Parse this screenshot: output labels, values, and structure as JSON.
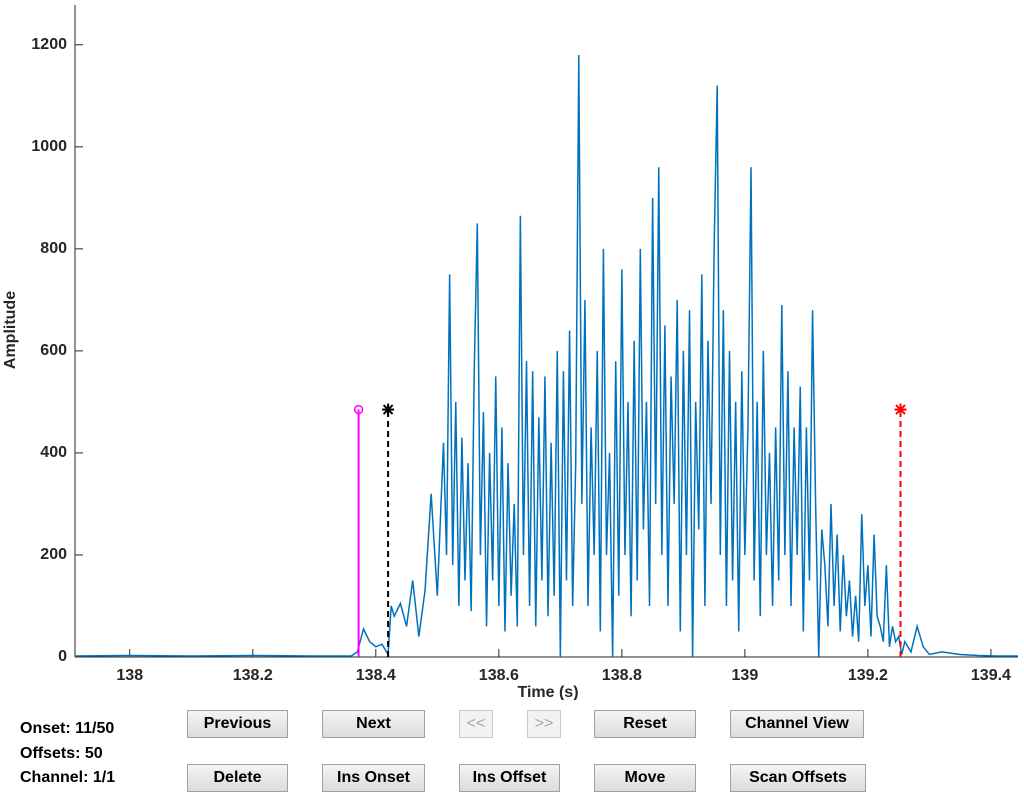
{
  "chart_data": {
    "type": "line",
    "x_label": "Time (s)",
    "y_label": "Amplitude",
    "xlim": [
      137.911,
      139.444
    ],
    "ylim": [
      0,
      1278
    ],
    "xticks": [
      138,
      138.2,
      138.4,
      138.6,
      138.8,
      139,
      139.2,
      139.4
    ],
    "yticks": [
      0,
      200,
      400,
      600,
      800,
      1000,
      1200
    ],
    "grid": false,
    "series": [
      {
        "color": "#0072bd",
        "x": [
          137.911,
          138.0,
          138.1,
          138.2,
          138.3,
          138.36,
          138.37,
          138.38,
          138.39,
          138.4,
          138.41,
          138.42,
          138.425,
          138.43,
          138.44,
          138.45,
          138.46,
          138.47,
          138.48,
          138.49,
          138.5,
          138.51,
          138.515,
          138.52,
          138.525,
          138.53,
          138.535,
          138.54,
          138.545,
          138.55,
          138.555,
          138.56,
          138.565,
          138.57,
          138.575,
          138.58,
          138.585,
          138.59,
          138.595,
          138.6,
          138.605,
          138.61,
          138.615,
          138.62,
          138.625,
          138.63,
          138.635,
          138.64,
          138.645,
          138.65,
          138.655,
          138.66,
          138.665,
          138.67,
          138.675,
          138.68,
          138.685,
          138.69,
          138.695,
          138.7,
          138.705,
          138.71,
          138.715,
          138.72,
          138.725,
          138.73,
          138.735,
          138.74,
          138.745,
          138.75,
          138.755,
          138.76,
          138.765,
          138.77,
          138.775,
          138.78,
          138.785,
          138.79,
          138.795,
          138.8,
          138.805,
          138.81,
          138.815,
          138.82,
          138.825,
          138.83,
          138.835,
          138.84,
          138.845,
          138.85,
          138.855,
          138.86,
          138.865,
          138.87,
          138.875,
          138.88,
          138.885,
          138.89,
          138.895,
          138.9,
          138.905,
          138.91,
          138.915,
          138.92,
          138.925,
          138.93,
          138.935,
          138.94,
          138.945,
          138.95,
          138.955,
          138.96,
          138.965,
          138.97,
          138.975,
          138.98,
          138.985,
          138.99,
          138.995,
          139.0,
          139.005,
          139.01,
          139.015,
          139.02,
          139.025,
          139.03,
          139.035,
          139.04,
          139.045,
          139.05,
          139.055,
          139.06,
          139.065,
          139.07,
          139.075,
          139.08,
          139.085,
          139.09,
          139.095,
          139.1,
          139.105,
          139.11,
          139.115,
          139.12,
          139.125,
          139.13,
          139.135,
          139.14,
          139.145,
          139.15,
          139.155,
          139.16,
          139.165,
          139.17,
          139.175,
          139.18,
          139.185,
          139.19,
          139.195,
          139.2,
          139.205,
          139.21,
          139.215,
          139.22,
          139.225,
          139.23,
          139.235,
          139.24,
          139.245,
          139.25,
          139.255,
          139.26,
          139.27,
          139.28,
          139.29,
          139.3,
          139.32,
          139.35,
          139.38,
          139.41,
          139.444
        ],
        "values": [
          2,
          3,
          2,
          3,
          2,
          2,
          10,
          55,
          30,
          20,
          25,
          5,
          100,
          80,
          105,
          60,
          150,
          40,
          130,
          320,
          120,
          420,
          200,
          750,
          180,
          500,
          100,
          430,
          150,
          380,
          90,
          560,
          850,
          200,
          480,
          60,
          400,
          150,
          550,
          100,
          450,
          50,
          380,
          120,
          300,
          60,
          865,
          200,
          580,
          100,
          560,
          60,
          470,
          150,
          550,
          80,
          420,
          120,
          600,
          0,
          560,
          150,
          640,
          100,
          380,
          1180,
          300,
          700,
          100,
          450,
          200,
          600,
          50,
          800,
          200,
          400,
          0,
          580,
          120,
          760,
          200,
          500,
          80,
          620,
          150,
          800,
          250,
          500,
          100,
          900,
          300,
          960,
          200,
          650,
          100,
          550,
          300,
          700,
          50,
          600,
          200,
          680,
          0,
          500,
          250,
          750,
          100,
          620,
          300,
          800,
          1120,
          200,
          680,
          100,
          600,
          150,
          500,
          50,
          560,
          200,
          450,
          960,
          150,
          500,
          80,
          600,
          200,
          400,
          100,
          450,
          150,
          690,
          200,
          560,
          100,
          450,
          200,
          530,
          50,
          450,
          150,
          680,
          300,
          0,
          250,
          180,
          60,
          300,
          100,
          240,
          50,
          200,
          80,
          150,
          40,
          120,
          30,
          280,
          100,
          180,
          40,
          240,
          80,
          60,
          30,
          180,
          20,
          60,
          30,
          40,
          5,
          30,
          10,
          60,
          20,
          5,
          10,
          5,
          3,
          2,
          2
        ]
      }
    ],
    "markers": [
      {
        "x": 138.372,
        "y": 485,
        "color": "#ff00ff",
        "style": "solid",
        "symbol": "circle"
      },
      {
        "x": 138.42,
        "y": 485,
        "color": "#000000",
        "style": "dashed",
        "symbol": "asterisk"
      },
      {
        "x": 139.253,
        "y": 485,
        "color": "#ff0000",
        "style": "dashed",
        "symbol": "asterisk"
      }
    ]
  },
  "status": {
    "onset": "Onset: 11/50",
    "offsets": "Offsets: 50",
    "channel": "Channel: 1/1"
  },
  "buttons": [
    {
      "label": "Previous",
      "enabled": true
    },
    {
      "label": "Next",
      "enabled": true
    },
    {
      "label": "<<",
      "enabled": false
    },
    {
      "label": ">>",
      "enabled": false
    },
    {
      "label": "Reset",
      "enabled": true
    },
    {
      "label": "Channel View",
      "enabled": true
    },
    {
      "label": "Delete",
      "enabled": true
    },
    {
      "label": "Ins Onset",
      "enabled": true
    },
    {
      "label": "Ins Offset",
      "enabled": true
    },
    {
      "label": "Move",
      "enabled": true
    },
    {
      "label": "Scan Offsets",
      "enabled": true
    }
  ]
}
